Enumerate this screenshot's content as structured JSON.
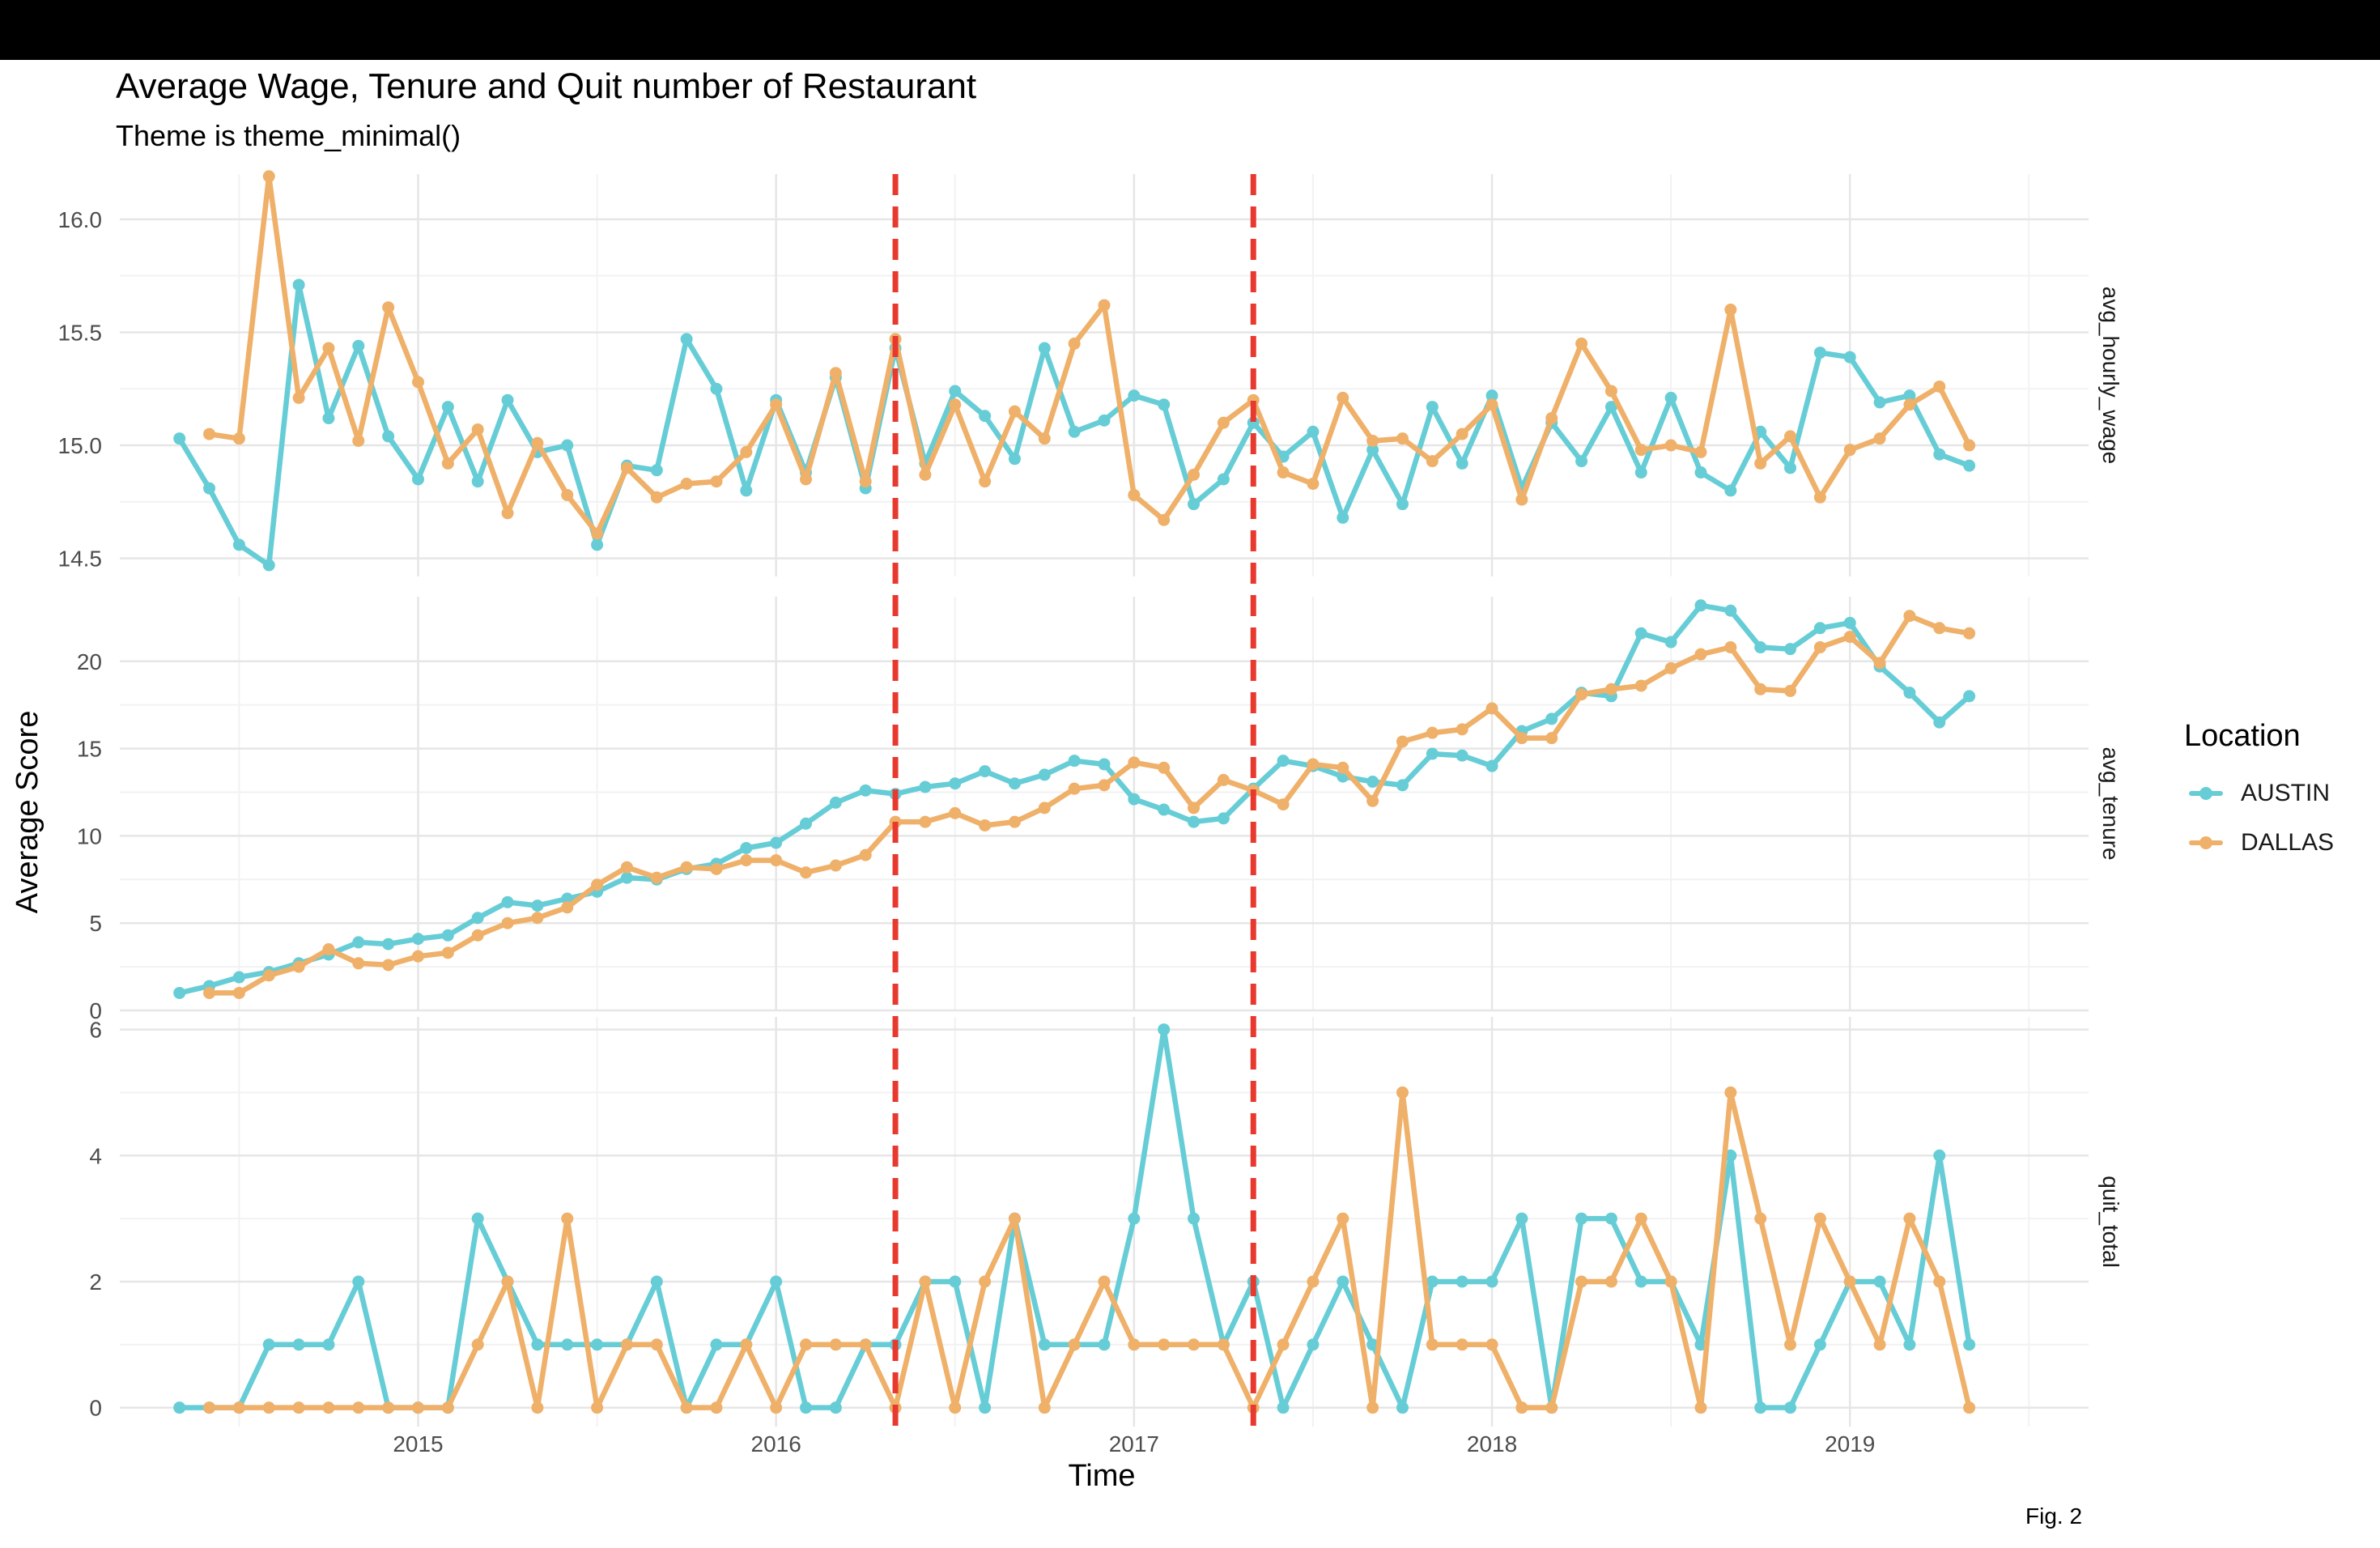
{
  "header": {
    "title": "Average Wage, Tenure and Quit number of Restaurant",
    "subtitle": "Theme is theme_minimal()"
  },
  "caption": "Fig. 2",
  "legend": {
    "title": "Location",
    "items": [
      {
        "label": "AUSTIN",
        "color": "#66cdd6"
      },
      {
        "label": "DALLAS",
        "color": "#efb069"
      }
    ]
  },
  "chart_data": {
    "type": "line",
    "title": "Average Wage, Tenure and Quit number of Restaurant",
    "subtitle": "Theme is theme_minimal()",
    "xlabel": "Time",
    "ylabel": "Average Score",
    "grid": true,
    "legend_position": "right",
    "x_ticks": [
      "2015",
      "2016",
      "2017",
      "2018",
      "2019"
    ],
    "xlim": [
      "2014-03",
      "2019-09"
    ],
    "first_month": "2014-05",
    "vlines": {
      "dates": [
        "2016-05",
        "2017-05"
      ],
      "color": "#e8392f",
      "style": "dashed"
    },
    "series_colors": {
      "AUSTIN": "#66cdd6",
      "DALLAS": "#efb069"
    },
    "panels": [
      {
        "strip_label": "avg_hourly_wage",
        "ylim": [
          14.42,
          16.2
        ],
        "y_ticks": [
          14.5,
          15.0,
          15.5,
          16.0
        ],
        "y_tick_labels": [
          "14.5",
          "15.0",
          "15.5",
          "16.0"
        ],
        "series": [
          {
            "name": "AUSTIN",
            "values": [
              15.03,
              14.81,
              14.56,
              14.47,
              15.71,
              15.12,
              15.44,
              15.04,
              14.85,
              15.17,
              14.84,
              15.2,
              14.97,
              15.0,
              14.56,
              14.91,
              14.89,
              15.47,
              15.25,
              14.8,
              15.2,
              14.88,
              15.3,
              14.81,
              15.43,
              14.92,
              15.24,
              15.13,
              14.94,
              15.43,
              15.06,
              15.11,
              15.22,
              15.18,
              14.74,
              14.85,
              15.1,
              14.95,
              15.06,
              14.68,
              14.98,
              14.74,
              15.17,
              14.92,
              15.22,
              14.81,
              15.1,
              14.93,
              15.17,
              14.88,
              15.21,
              14.88,
              14.8,
              15.06,
              14.9,
              15.41,
              15.39,
              15.19,
              15.22,
              14.96,
              14.91
            ]
          },
          {
            "name": "DALLAS",
            "values": [
              null,
              15.05,
              15.03,
              16.19,
              15.21,
              15.43,
              15.02,
              15.61,
              15.28,
              14.92,
              15.07,
              14.7,
              15.01,
              14.78,
              14.61,
              14.9,
              14.77,
              14.83,
              14.84,
              14.97,
              15.18,
              14.85,
              15.32,
              14.84,
              15.47,
              14.87,
              15.18,
              14.84,
              15.15,
              15.03,
              15.45,
              15.62,
              14.78,
              14.67,
              14.87,
              15.1,
              15.2,
              14.88,
              14.83,
              15.21,
              15.02,
              15.03,
              14.93,
              15.05,
              15.18,
              14.76,
              15.12,
              15.45,
              15.24,
              14.98,
              15.0,
              14.97,
              15.6,
              14.92,
              15.04,
              14.77,
              14.98,
              15.03,
              15.18,
              15.26,
              15.0
            ]
          }
        ]
      },
      {
        "strip_label": "avg_tenure",
        "ylim": [
          0,
          23.7
        ],
        "y_ticks": [
          0,
          5,
          10,
          15,
          20
        ],
        "y_tick_labels": [
          "0",
          "5",
          "10",
          "15",
          "20"
        ],
        "series": [
          {
            "name": "AUSTIN",
            "values": [
              1.0,
              1.4,
              1.9,
              2.2,
              2.7,
              3.2,
              3.9,
              3.8,
              4.1,
              4.3,
              5.3,
              6.2,
              6.0,
              6.4,
              6.8,
              7.6,
              7.5,
              8.1,
              8.4,
              9.3,
              9.6,
              10.7,
              11.9,
              12.6,
              12.4,
              12.8,
              13.0,
              13.7,
              13.0,
              13.5,
              14.3,
              14.1,
              12.1,
              11.5,
              10.8,
              11.0,
              12.7,
              14.3,
              14.0,
              13.4,
              13.1,
              12.9,
              14.7,
              14.6,
              14.0,
              16.0,
              16.7,
              18.2,
              18.0,
              21.6,
              21.1,
              23.2,
              22.9,
              20.8,
              20.7,
              21.9,
              22.2,
              19.7,
              18.2,
              16.5,
              18.0
            ]
          },
          {
            "name": "DALLAS",
            "values": [
              null,
              1.0,
              1.0,
              2.0,
              2.5,
              3.5,
              2.7,
              2.6,
              3.1,
              3.3,
              4.3,
              5.0,
              5.3,
              5.9,
              7.2,
              8.2,
              7.6,
              8.2,
              8.1,
              8.6,
              8.6,
              7.9,
              8.3,
              8.9,
              10.8,
              10.8,
              11.3,
              10.6,
              10.8,
              11.6,
              12.7,
              12.9,
              14.2,
              13.9,
              11.6,
              13.2,
              12.6,
              11.8,
              14.1,
              13.9,
              12.0,
              15.4,
              15.9,
              16.1,
              17.3,
              15.6,
              15.6,
              18.1,
              18.4,
              18.6,
              19.6,
              20.4,
              20.8,
              18.4,
              18.3,
              20.8,
              21.4,
              19.9,
              22.6,
              21.9,
              21.6
            ]
          }
        ]
      },
      {
        "strip_label": "quit_total",
        "ylim": [
          -0.3,
          6.2
        ],
        "y_ticks": [
          0,
          2,
          4,
          6
        ],
        "y_tick_labels": [
          "0",
          "2",
          "4",
          "6"
        ],
        "series": [
          {
            "name": "AUSTIN",
            "values": [
              0,
              0,
              0,
              1,
              1,
              1,
              2,
              0,
              0,
              0,
              3,
              2,
              1,
              1,
              1,
              1,
              2,
              0,
              1,
              1,
              2,
              0,
              0,
              1,
              1,
              2,
              2,
              0,
              3,
              1,
              1,
              1,
              3,
              6,
              3,
              1,
              2,
              0,
              1,
              2,
              1,
              0,
              2,
              2,
              2,
              3,
              0,
              3,
              3,
              2,
              2,
              1,
              4,
              0,
              0,
              1,
              2,
              2,
              1,
              4,
              1
            ]
          },
          {
            "name": "DALLAS",
            "values": [
              null,
              0,
              0,
              0,
              0,
              0,
              0,
              0,
              0,
              0,
              1,
              2,
              0,
              3,
              0,
              1,
              1,
              0,
              0,
              1,
              0,
              1,
              1,
              1,
              0,
              2,
              0,
              2,
              3,
              0,
              1,
              2,
              1,
              1,
              1,
              1,
              0,
              1,
              2,
              3,
              0,
              5,
              1,
              1,
              1,
              0,
              0,
              2,
              2,
              3,
              2,
              0,
              5,
              3,
              1,
              3,
              2,
              1,
              3,
              2,
              0
            ]
          }
        ]
      }
    ]
  }
}
